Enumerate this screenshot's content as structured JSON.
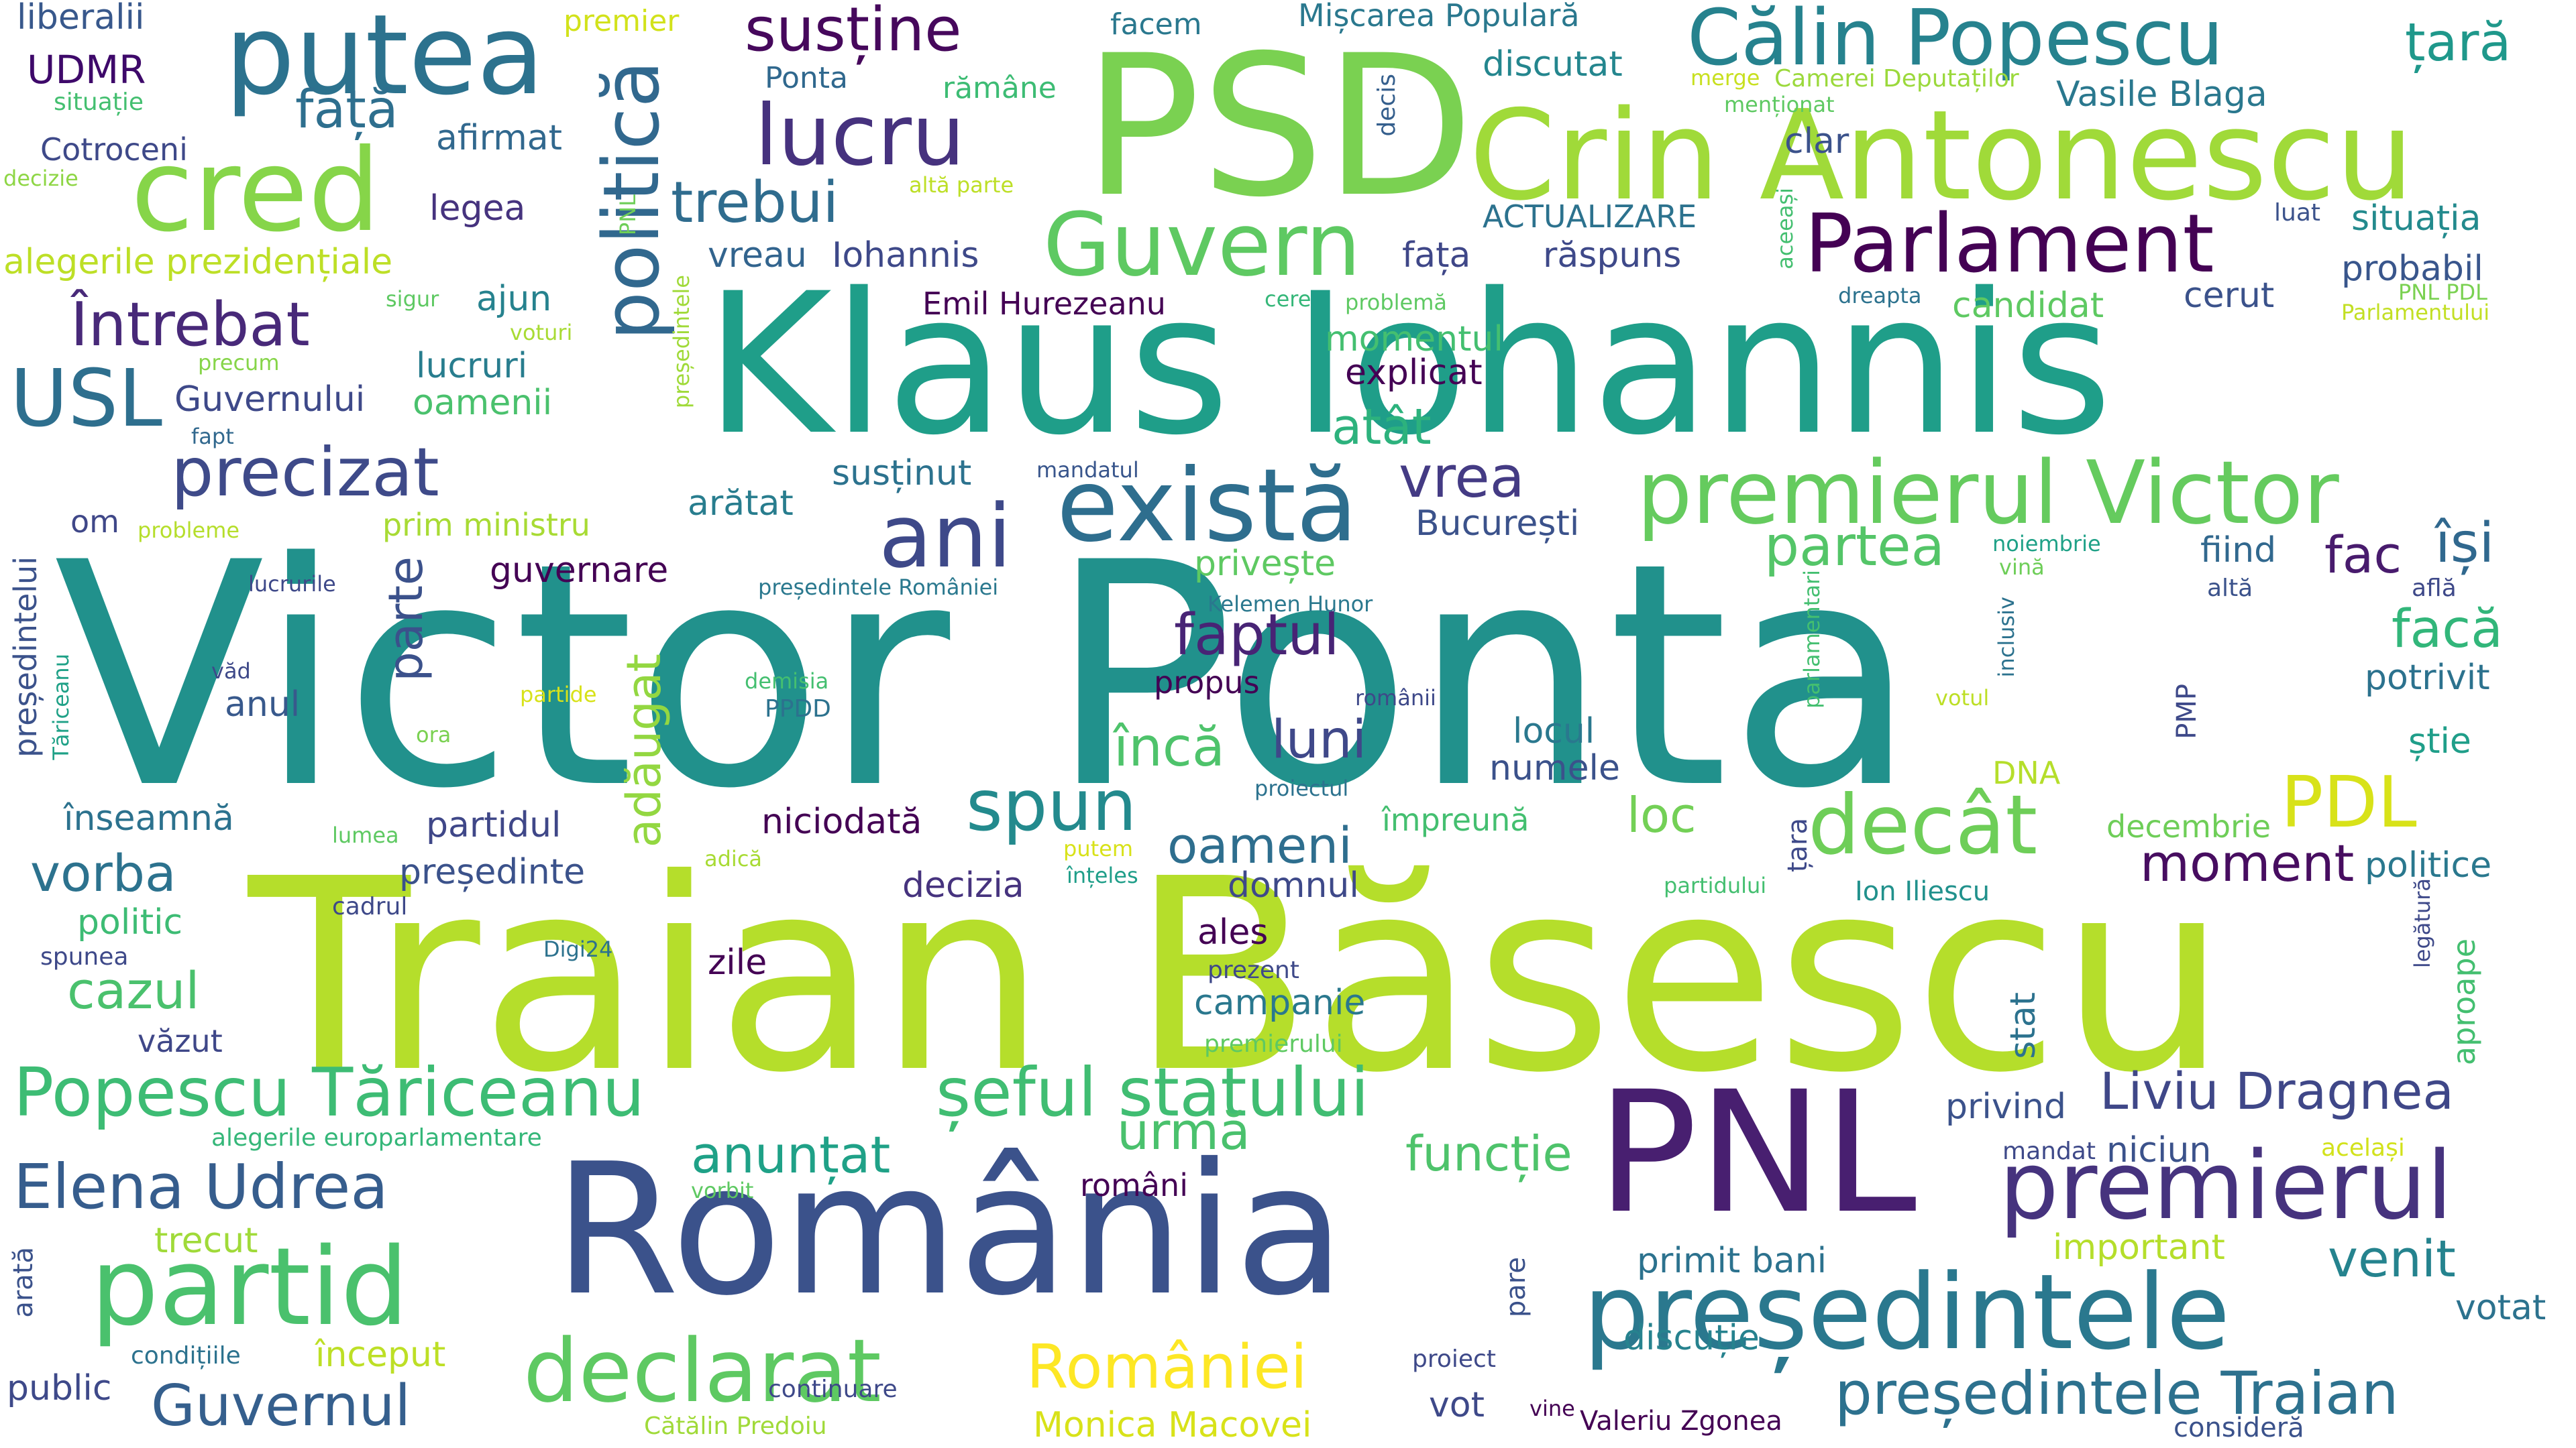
{
  "words": [
    {
      "text": "Victor Ponta",
      "color": "#21918c"
    },
    {
      "text": "Traian Băsescu",
      "color": "#b5de2b"
    },
    {
      "text": "Klaus Iohannis",
      "color": "#1f9e89"
    },
    {
      "text": "PSD",
      "color": "#7ad151"
    },
    {
      "text": "România",
      "color": "#3b528b"
    },
    {
      "text": "PNL",
      "color": "#481f70"
    },
    {
      "text": "Crin Antonescu",
      "color": "#a0da39"
    },
    {
      "text": "președintele",
      "color": "#2a788e"
    },
    {
      "text": "cred",
      "color": "#86d549"
    },
    {
      "text": "putea",
      "color": "#2c728e"
    },
    {
      "text": "există",
      "color": "#2e6e8e"
    },
    {
      "text": "partid",
      "color": "#4ac16d"
    },
    {
      "text": "declarat",
      "color": "#5ec962"
    },
    {
      "text": "premierul Victor",
      "color": "#65cb5e"
    },
    {
      "text": "premierul",
      "color": "#46337e"
    },
    {
      "text": "ani",
      "color": "#3e4989"
    },
    {
      "text": "Călin Popescu",
      "color": "#26828e"
    },
    {
      "text": "Guvern",
      "color": "#5ec962"
    },
    {
      "text": "Parlament",
      "color": "#440154"
    },
    {
      "text": "politică",
      "color": "#31688e"
    },
    {
      "text": "lucru",
      "color": "#46327e"
    },
    {
      "text": "Popescu Tăriceanu",
      "color": "#3dbc74"
    },
    {
      "text": "șeful statului",
      "color": "#40bd72"
    },
    {
      "text": "Elena Udrea",
      "color": "#365d8d"
    },
    {
      "text": "decât",
      "color": "#6ece58"
    },
    {
      "text": "PDL",
      "color": "#d8e219"
    },
    {
      "text": "spun",
      "color": "#238a8d"
    },
    {
      "text": "USL",
      "color": "#2e6f8e"
    },
    {
      "text": "susține",
      "color": "#46085c"
    },
    {
      "text": "României",
      "color": "#fde725"
    },
    {
      "text": "președintele Traian",
      "color": "#2d718e"
    },
    {
      "text": "Liviu Dragnea",
      "color": "#3f4788"
    },
    {
      "text": "precizat",
      "color": "#3e4a89"
    },
    {
      "text": "Întrebat",
      "color": "#482979"
    },
    {
      "text": "Guvernul",
      "color": "#355f8d"
    },
    {
      "text": "trebui",
      "color": "#2f6c8e"
    },
    {
      "text": "faptul",
      "color": "#482475"
    },
    {
      "text": "parte",
      "color": "#3b518b"
    },
    {
      "text": "adăugat",
      "color": "#93d741"
    },
    {
      "text": "vrea",
      "color": "#443b84"
    },
    {
      "text": "față",
      "color": "#2e6f8e"
    },
    {
      "text": "țară",
      "color": "#1f988b"
    },
    {
      "text": "facă",
      "color": "#32b67a"
    },
    {
      "text": "încă",
      "color": "#4ec36b"
    },
    {
      "text": "partea",
      "color": "#54c568"
    },
    {
      "text": "oameni",
      "color": "#2e6e8e"
    },
    {
      "text": "moment",
      "color": "#470d60"
    },
    {
      "text": "fac",
      "color": "#481b6d"
    },
    {
      "text": "își",
      "color": "#30688e"
    },
    {
      "text": "anunțat",
      "color": "#1fa187"
    },
    {
      "text": "urmă",
      "color": "#4ac16d"
    },
    {
      "text": "venit",
      "color": "#25838e"
    },
    {
      "text": "cazul",
      "color": "#4ac16d"
    },
    {
      "text": "vorba",
      "color": "#2c728e"
    },
    {
      "text": "luni",
      "color": "#3f4889"
    },
    {
      "text": "atât",
      "color": "#2db27d"
    },
    {
      "text": "loc",
      "color": "#73d056"
    },
    {
      "text": "funcție",
      "color": "#4ec36b"
    },
    {
      "text": "Emil Hurezeanu",
      "color": "#440154"
    },
    {
      "text": "Vasile Blaga",
      "color": "#2a788e"
    },
    {
      "text": "Mișcarea Populară",
      "color": "#2a788e"
    },
    {
      "text": "facem",
      "color": "#2a788e"
    },
    {
      "text": "Ponta",
      "color": "#30688e"
    },
    {
      "text": "rămâne",
      "color": "#3dbc74"
    },
    {
      "text": "premier",
      "color": "#d2e21b"
    },
    {
      "text": "discutat",
      "color": "#24868e"
    },
    {
      "text": "merge",
      "color": "#c8e020"
    },
    {
      "text": "Camerei Deputaților",
      "color": "#9bd93c"
    },
    {
      "text": "menționat",
      "color": "#5ec962"
    },
    {
      "text": "clar",
      "color": "#3b528b"
    },
    {
      "text": "decis",
      "color": "#355f8d"
    },
    {
      "text": "liberalii",
      "color": "#38588c"
    },
    {
      "text": "UDMR",
      "color": "#3e096a"
    },
    {
      "text": "situație",
      "color": "#44bf70"
    },
    {
      "text": "Cotroceni",
      "color": "#3e4989"
    },
    {
      "text": "decizie",
      "color": "#8ed645"
    },
    {
      "text": "afirmat",
      "color": "#31688e"
    },
    {
      "text": "altă parte",
      "color": "#bddf26"
    },
    {
      "text": "legea",
      "color": "#46337e"
    },
    {
      "text": "alegerile prezidențiale",
      "color": "#bddf26"
    },
    {
      "text": "PNL",
      "color": "#6ece58"
    },
    {
      "text": "vreau",
      "color": "#32648e"
    },
    {
      "text": "Iohannis",
      "color": "#3e4989"
    },
    {
      "text": "fața",
      "color": "#3f4788"
    },
    {
      "text": "răspuns",
      "color": "#3e4989"
    },
    {
      "text": "ACTUALIZARE",
      "color": "#2c728e"
    },
    {
      "text": "aceeași",
      "color": "#44bf70"
    },
    {
      "text": "luat",
      "color": "#3b528b"
    },
    {
      "text": "situația",
      "color": "#238a8d"
    },
    {
      "text": "probabil",
      "color": "#39568c"
    },
    {
      "text": "dreapta",
      "color": "#2c728e"
    },
    {
      "text": "PNL PDL",
      "color": "#7ad151"
    },
    {
      "text": "Parlamentului",
      "color": "#c2df23"
    },
    {
      "text": "candidat",
      "color": "#5ec962"
    },
    {
      "text": "cerut",
      "color": "#3b528b"
    },
    {
      "text": "cere",
      "color": "#35b779"
    },
    {
      "text": "problemă",
      "color": "#5ec962"
    },
    {
      "text": "sigur",
      "color": "#5ec962"
    },
    {
      "text": "ajun",
      "color": "#26828e"
    },
    {
      "text": "voturi",
      "color": "#a8db34"
    },
    {
      "text": "momentul",
      "color": "#44bf70"
    },
    {
      "text": "explicat",
      "color": "#440154"
    },
    {
      "text": "lucruri",
      "color": "#287d8e"
    },
    {
      "text": "precum",
      "color": "#86d549"
    },
    {
      "text": "Guvernului",
      "color": "#3e4989"
    },
    {
      "text": "oamenii",
      "color": "#4ac16d"
    },
    {
      "text": "fapt",
      "color": "#31688e"
    },
    {
      "text": "președintele",
      "color": "#a0da39"
    },
    {
      "text": "om",
      "color": "#3f4788"
    },
    {
      "text": "probleme",
      "color": "#b5de2b"
    },
    {
      "text": "prim ministru",
      "color": "#a8db34"
    },
    {
      "text": "arătat",
      "color": "#287d8e"
    },
    {
      "text": "susținut",
      "color": "#2c728e"
    },
    {
      "text": "mandatul",
      "color": "#39568c"
    },
    {
      "text": "București",
      "color": "#3b528b"
    },
    {
      "text": "guvernare",
      "color": "#440154"
    },
    {
      "text": "privește",
      "color": "#5ec962"
    },
    {
      "text": "președintele României",
      "color": "#2a788e"
    },
    {
      "text": "noiembrie",
      "color": "#1fa187"
    },
    {
      "text": "vină",
      "color": "#6ece58"
    },
    {
      "text": "fiind",
      "color": "#31688e"
    },
    {
      "text": "altă",
      "color": "#3b528b"
    },
    {
      "text": "află",
      "color": "#3e4989"
    },
    {
      "text": "parlamentari",
      "color": "#44bf70"
    },
    {
      "text": "președintelui",
      "color": "#3b528b"
    },
    {
      "text": "lucrurile",
      "color": "#3e4989"
    },
    {
      "text": "Tăriceanu",
      "color": "#1fa187"
    },
    {
      "text": "văd",
      "color": "#3e4989"
    },
    {
      "text": "anul",
      "color": "#38598c"
    },
    {
      "text": "partide",
      "color": "#d8e219"
    },
    {
      "text": "ora",
      "color": "#7ad151"
    },
    {
      "text": "Kelemen Hunor",
      "color": "#2a788e"
    },
    {
      "text": "propus",
      "color": "#440154"
    },
    {
      "text": "românii",
      "color": "#3e4989"
    },
    {
      "text": "demisia",
      "color": "#44bf70"
    },
    {
      "text": "PPDD",
      "color": "#2c728e"
    },
    {
      "text": "votul",
      "color": "#bddf26"
    },
    {
      "text": "inclusiv",
      "color": "#2c728e"
    },
    {
      "text": "potrivit",
      "color": "#2c728e"
    },
    {
      "text": "PMP",
      "color": "#3e4989"
    },
    {
      "text": "locul",
      "color": "#2a788e"
    },
    {
      "text": "numele",
      "color": "#3b528b"
    },
    {
      "text": "știe",
      "color": "#1f9e89"
    },
    {
      "text": "DNA",
      "color": "#b5de2b"
    },
    {
      "text": "proiectul",
      "color": "#2c728e"
    },
    {
      "text": "înseamnă",
      "color": "#2c728e"
    },
    {
      "text": "lumea",
      "color": "#5ec962"
    },
    {
      "text": "partidul",
      "color": "#3f4788"
    },
    {
      "text": "împreună",
      "color": "#44bf70"
    },
    {
      "text": "țara",
      "color": "#3e4989"
    },
    {
      "text": "decembrie",
      "color": "#6ece58"
    },
    {
      "text": "politice",
      "color": "#2a788e"
    },
    {
      "text": "președinte",
      "color": "#3b528b"
    },
    {
      "text": "adică",
      "color": "#a8db34"
    },
    {
      "text": "putem",
      "color": "#d8e219"
    },
    {
      "text": "niciodată",
      "color": "#440154"
    },
    {
      "text": "înțeles",
      "color": "#1f9e89"
    },
    {
      "text": "domnul",
      "color": "#3e4989"
    },
    {
      "text": "partidului",
      "color": "#44bf70"
    },
    {
      "text": "Ion Iliescu",
      "color": "#21918c"
    },
    {
      "text": "legătură",
      "color": "#3e4989"
    },
    {
      "text": "politic",
      "color": "#3dbc74"
    },
    {
      "text": "cadrul",
      "color": "#3e4989"
    },
    {
      "text": "decizia",
      "color": "#46337e"
    },
    {
      "text": "spunea",
      "color": "#3e4989"
    },
    {
      "text": "Digi24",
      "color": "#2c728e"
    },
    {
      "text": "zile",
      "color": "#440154"
    },
    {
      "text": "ales",
      "color": "#440154"
    },
    {
      "text": "prezent",
      "color": "#3e4989"
    },
    {
      "text": "campanie",
      "color": "#2a788e"
    },
    {
      "text": "stat",
      "color": "#2c728e"
    },
    {
      "text": "aproape",
      "color": "#44bf70"
    },
    {
      "text": "văzut",
      "color": "#3f4788"
    },
    {
      "text": "premierului",
      "color": "#5ec962"
    },
    {
      "text": "privind",
      "color": "#3b528b"
    },
    {
      "text": "alegerile europarlamentare",
      "color": "#35b779"
    },
    {
      "text": "mandat",
      "color": "#3e4989"
    },
    {
      "text": "niciun",
      "color": "#3b528b"
    },
    {
      "text": "același",
      "color": "#d2e21b"
    },
    {
      "text": "vorbit",
      "color": "#5ec962"
    },
    {
      "text": "români",
      "color": "#440154"
    },
    {
      "text": "trecut",
      "color": "#a0da39"
    },
    {
      "text": "important",
      "color": "#b5de2b"
    },
    {
      "text": "primit bani",
      "color": "#2c728e"
    },
    {
      "text": "arată",
      "color": "#3b528b"
    },
    {
      "text": "pare",
      "color": "#3b528b"
    },
    {
      "text": "votat",
      "color": "#2c728e"
    },
    {
      "text": "condițiile",
      "color": "#2c728e"
    },
    {
      "text": "început",
      "color": "#bddf26"
    },
    {
      "text": "proiect",
      "color": "#3e4989"
    },
    {
      "text": "discuție",
      "color": "#26828e"
    },
    {
      "text": "public",
      "color": "#3e4989"
    },
    {
      "text": "continuare",
      "color": "#3e4989"
    },
    {
      "text": "vot",
      "color": "#3e4989"
    },
    {
      "text": "vine",
      "color": "#440154"
    },
    {
      "text": "Valeriu Zgonea",
      "color": "#440154"
    },
    {
      "text": "consideră",
      "color": "#3b528b"
    },
    {
      "text": "Cătălin Predoiu",
      "color": "#a0da39"
    },
    {
      "text": "Monica Macovei",
      "color": "#d8e219"
    }
  ]
}
